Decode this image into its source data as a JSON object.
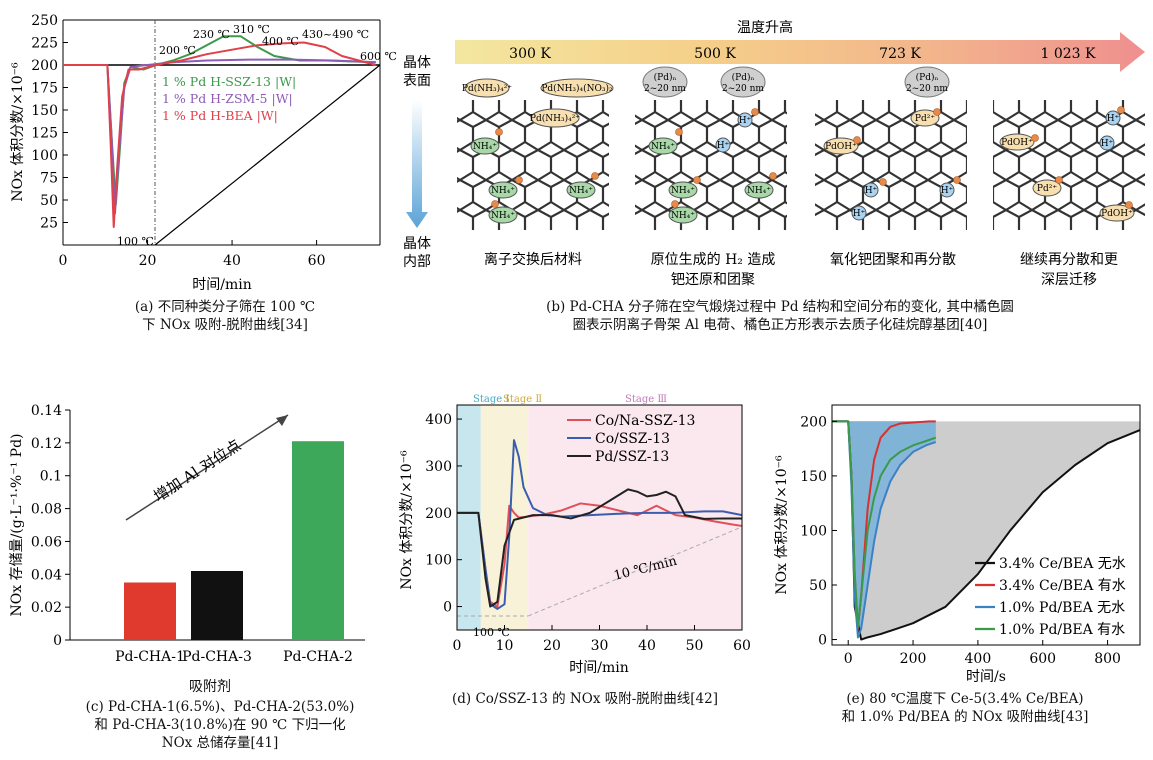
{
  "panel_a": {
    "caption": [
      "(a) 不同种类分子筛在 100 ℃",
      "下 NOx 吸附-脱附曲线[34]"
    ],
    "chart_data": {
      "type": "line",
      "xlabel": "时间/min",
      "ylabel": "NOx 体积分数/×10⁻⁶",
      "xlim": [
        0,
        75
      ],
      "ylim": [
        0,
        250
      ],
      "xticks": [
        0,
        20,
        40,
        60
      ],
      "yticks": [
        25,
        50,
        75,
        100,
        125,
        150,
        175,
        200,
        225,
        250
      ],
      "annotations": [
        "100 ℃",
        "200 ℃",
        "230 ℃",
        "310 ℃",
        "400 ℃",
        "430~490 ℃",
        "600 ℃"
      ],
      "series": [
        {
          "name": "1 % Pd H-SSZ-13 |W|",
          "color": "#3a9a4a",
          "x": [
            0,
            10.5,
            11.5,
            12.5,
            13.5,
            14.5,
            16,
            19,
            22,
            26,
            30,
            34,
            38,
            42,
            46,
            50,
            56,
            62,
            68,
            74
          ],
          "y": [
            200,
            200,
            120,
            45,
            110,
            180,
            198,
            195,
            200,
            205,
            212,
            222,
            232,
            232,
            220,
            210,
            205,
            205,
            204,
            203
          ]
        },
        {
          "name": "1 % Pd H-ZSM-5 |W|",
          "color": "#8e5bb5",
          "x": [
            0,
            10.5,
            11.5,
            12.3,
            13.2,
            14.5,
            16,
            20,
            26,
            34,
            44,
            54,
            64,
            74
          ],
          "y": [
            200,
            200,
            120,
            35,
            100,
            175,
            198,
            200,
            203,
            205,
            206,
            206,
            205,
            203
          ]
        },
        {
          "name": "1 % Pd H-BEA |W|",
          "color": "#e0404a",
          "x": [
            0,
            10.5,
            11.3,
            12.0,
            12.8,
            14.0,
            15.5,
            18,
            22,
            28,
            34,
            40,
            46,
            52,
            57,
            62,
            66,
            70,
            74
          ],
          "y": [
            200,
            200,
            110,
            20,
            85,
            165,
            195,
            195,
            200,
            205,
            212,
            217,
            222,
            224,
            225,
            220,
            210,
            205,
            200
          ]
        }
      ]
    }
  },
  "panel_b": {
    "banner_title": "温度升高",
    "temps": [
      "300 K",
      "500 K",
      "723 K",
      "1 023 K"
    ],
    "side_top": [
      "晶体",
      "表面"
    ],
    "side_bottom": [
      "晶体",
      "内部"
    ],
    "stage_labels": [
      [
        "离子交换后材料"
      ],
      [
        "原位生成的 H₂ 造成",
        "钯还原和团聚"
      ],
      [
        "氧化钯团聚和再分散"
      ],
      [
        "继续再分散和更",
        "深层迁移"
      ]
    ],
    "species": {
      "nh4": "NH₄⁺",
      "h": "H⁺",
      "pd2": "Pd²⁺",
      "pdoh": "PdOH⁺",
      "pdnh3": "Pd(NH₃)₄²⁺",
      "pdnh3no3": "Pd(NH₃)₄(NO₃)₂",
      "pdn": "(Pd)ₙ",
      "pdn_size": "2~20 nm"
    },
    "caption": [
      "(b) Pd-CHA 分子筛在空气煅烧过程中 Pd 结构和空间分布的变化, 其中橘色圆",
      "圈表示阴离子骨架 Al 电荷、橘色正方形表示去质子化硅烷醇基团[40]"
    ]
  },
  "panel_c": {
    "caption": [
      "(c) Pd-CHA-1(6.5%)、Pd-CHA-2(53.0%)",
      "和 Pd-CHA-3(10.8%)在 90 ℃ 下归一化",
      "NOx 总储存量[41]"
    ],
    "arrow_label": "增加 Al 对位点",
    "chart_data": {
      "type": "bar",
      "categories": [
        "Pd-CHA-1",
        "Pd-CHA-3",
        "Pd-CHA-2"
      ],
      "values": [
        0.035,
        0.042,
        0.121
      ],
      "colors": [
        "#e03a2e",
        "#111111",
        "#3da85a"
      ],
      "xlabel": "吸附剂",
      "ylabel": "NOx 存储量/(g·L⁻¹·%⁻¹ Pd)",
      "ylim": [
        0,
        0.14
      ],
      "yticks": [
        0,
        0.02,
        0.04,
        0.06,
        0.08,
        0.1,
        0.12,
        0.14
      ]
    }
  },
  "panel_d": {
    "caption": [
      "(d) Co/SSZ-13 的 NOx 吸附-脱附曲线[42]"
    ],
    "stages": [
      "Stage Ⅰ",
      "Stage Ⅱ",
      "Stage Ⅲ"
    ],
    "ramp_label": "10 ℃/min",
    "temp_label": "100 ℃",
    "chart_data": {
      "type": "line",
      "xlabel": "时间/min",
      "ylabel": "NOx 体积分数/×10⁻⁶",
      "xlim": [
        0,
        60
      ],
      "ylim": [
        -50,
        430
      ],
      "xticks": [
        0,
        10,
        20,
        30,
        40,
        50,
        60
      ],
      "yticks": [
        0,
        100,
        200,
        300,
        400
      ],
      "series": [
        {
          "name": "Co/Na-SSZ-13",
          "color": "#e0505a",
          "x": [
            0,
            4.5,
            6,
            7,
            8.5,
            10,
            11,
            12,
            13,
            15,
            18,
            22,
            26,
            30,
            34,
            38,
            42,
            46,
            50,
            54,
            58,
            60
          ],
          "y": [
            200,
            200,
            80,
            10,
            0,
            90,
            215,
            200,
            190,
            192,
            196,
            205,
            220,
            215,
            205,
            195,
            215,
            195,
            190,
            182,
            175,
            172
          ]
        },
        {
          "name": "Co/SSZ-13",
          "color": "#3a5db0",
          "x": [
            0,
            4.5,
            6,
            7,
            8.5,
            10,
            11,
            12,
            13,
            14,
            16,
            19,
            22,
            28,
            34,
            40,
            46,
            52,
            56,
            60
          ],
          "y": [
            200,
            200,
            80,
            5,
            -5,
            5,
            150,
            355,
            320,
            255,
            210,
            195,
            192,
            195,
            198,
            200,
            200,
            203,
            203,
            195
          ]
        },
        {
          "name": "Pd/SSZ-13",
          "color": "#222222",
          "x": [
            0,
            4.5,
            6,
            7,
            8.5,
            10,
            12,
            14,
            16,
            20,
            24,
            28,
            32,
            36,
            38,
            40,
            42,
            44,
            46,
            48,
            52,
            56,
            60
          ],
          "y": [
            200,
            200,
            60,
            0,
            10,
            130,
            185,
            190,
            195,
            195,
            188,
            200,
            225,
            250,
            245,
            235,
            238,
            245,
            235,
            195,
            187,
            188,
            188
          ]
        }
      ]
    }
  },
  "panel_e": {
    "caption": [
      "(e) 80 ℃温度下 Ce-5(3.4% Ce/BEA)",
      "和 1.0% Pd/BEA 的 NOx 吸附曲线[43]"
    ],
    "chart_data": {
      "type": "line",
      "xlabel": "时间/s",
      "ylabel": "NOx 体积分数/×10⁻⁶",
      "xlim": [
        -50,
        900
      ],
      "ylim": [
        -5,
        215
      ],
      "xticks": [
        0,
        200,
        400,
        600,
        800
      ],
      "yticks": [
        0,
        50,
        100,
        150,
        200
      ],
      "series": [
        {
          "name": "3.4% Ce/BEA 无水",
          "color": "#111111",
          "x": [
            -50,
            0,
            10,
            20,
            40,
            60,
            100,
            150,
            200,
            300,
            400,
            500,
            600,
            700,
            800,
            900
          ],
          "y": [
            200,
            200,
            150,
            30,
            0,
            2,
            5,
            10,
            15,
            30,
            60,
            100,
            135,
            160,
            180,
            192
          ]
        },
        {
          "name": "3.4% Ce/BEA 有水",
          "color": "#d93030",
          "x": [
            -50,
            0,
            10,
            20,
            30,
            40,
            60,
            80,
            100,
            130,
            160,
            200,
            250,
            270
          ],
          "y": [
            200,
            200,
            150,
            60,
            10,
            40,
            120,
            165,
            185,
            195,
            198,
            199,
            200,
            200
          ]
        },
        {
          "name": "1.0% Pd/BEA 无水",
          "color": "#3b82c4",
          "x": [
            -50,
            0,
            10,
            20,
            30,
            40,
            60,
            80,
            100,
            130,
            160,
            200,
            240,
            270
          ],
          "y": [
            200,
            200,
            140,
            40,
            2,
            10,
            50,
            90,
            120,
            145,
            160,
            172,
            178,
            181
          ]
        },
        {
          "name": "1.0% Pd/BEA 有水",
          "color": "#3a9a4a",
          "x": [
            -50,
            0,
            10,
            20,
            30,
            40,
            60,
            80,
            100,
            130,
            160,
            200,
            240,
            270
          ],
          "y": [
            200,
            200,
            150,
            60,
            12,
            40,
            100,
            130,
            150,
            165,
            172,
            178,
            182,
            185
          ]
        }
      ]
    }
  }
}
